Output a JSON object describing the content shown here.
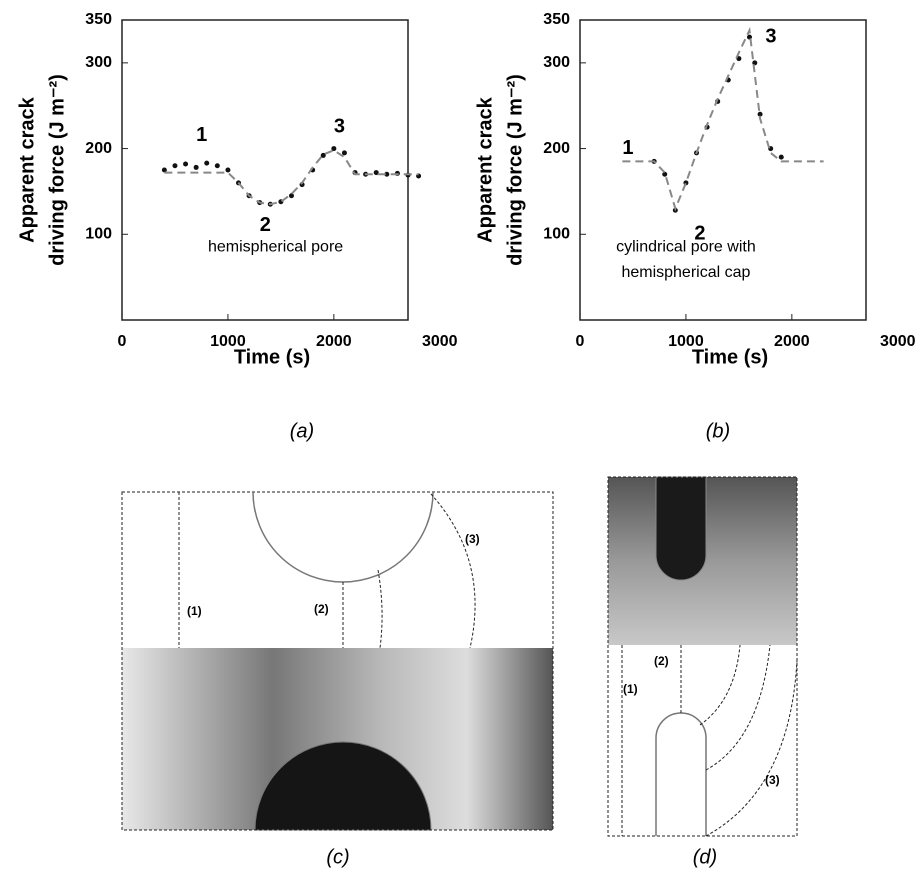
{
  "chart_data": [
    {
      "type": "scatter-fit",
      "panel": "(a)",
      "ylabel": [
        "Apparent crack",
        "driving force (J m⁻²)"
      ],
      "xlabel": "Time (s)",
      "xlim": [
        0,
        2700
      ],
      "xticks": [
        0,
        1000,
        2000,
        3000
      ],
      "ylim": [
        0,
        350
      ],
      "yticks": [
        100,
        200,
        300,
        350
      ],
      "annotations": [
        "1",
        "2",
        "3",
        "hemispherical pore"
      ],
      "series": [
        {
          "style": "points",
          "color": "#111111",
          "x": [
            400,
            500,
            600,
            700,
            800,
            900,
            1000,
            1100,
            1200,
            1300,
            1400,
            1500,
            1600,
            1700,
            1800,
            1900,
            2000,
            2100,
            2200,
            2300,
            2400,
            2500,
            2600,
            2700,
            2800
          ],
          "values": [
            175,
            180,
            182,
            178,
            183,
            180,
            175,
            160,
            145,
            137,
            135,
            138,
            145,
            158,
            175,
            192,
            200,
            195,
            172,
            170,
            172,
            170,
            171,
            169,
            168
          ]
        },
        {
          "style": "dashed",
          "color": "#888888",
          "x": [
            400,
            1000,
            1100,
            1200,
            1300,
            1400,
            1500,
            1600,
            1700,
            1800,
            1900,
            2000,
            2100,
            2200,
            2800
          ],
          "values": [
            172,
            172,
            160,
            145,
            137,
            135,
            138,
            147,
            160,
            178,
            193,
            198,
            190,
            170,
            170
          ]
        }
      ]
    },
    {
      "type": "scatter-fit",
      "panel": "(b)",
      "ylabel": [
        "Apparent crack",
        "driving force (J m⁻²)"
      ],
      "xlabel": "Time (s)",
      "xlim": [
        0,
        2700
      ],
      "xticks": [
        0,
        1000,
        2000,
        3000
      ],
      "ylim": [
        0,
        350
      ],
      "yticks": [
        100,
        200,
        300,
        350
      ],
      "annotations": [
        "1",
        "2",
        "3",
        "cylindrical pore with",
        "hemispherical cap"
      ],
      "series": [
        {
          "style": "points",
          "color": "#111111",
          "x": [
            700,
            800,
            900,
            1000,
            1100,
            1200,
            1300,
            1400,
            1500,
            1600,
            1650,
            1700,
            1800,
            1900
          ],
          "values": [
            185,
            170,
            128,
            160,
            195,
            225,
            255,
            280,
            305,
            330,
            300,
            240,
            200,
            190
          ]
        },
        {
          "style": "dashed",
          "color": "#888888",
          "x": [
            400,
            700,
            800,
            900,
            1000,
            1100,
            1200,
            1300,
            1400,
            1500,
            1600,
            1700,
            1800,
            1900,
            2300
          ],
          "values": [
            185,
            185,
            172,
            130,
            160,
            195,
            228,
            258,
            285,
            312,
            338,
            235,
            195,
            185,
            185
          ]
        }
      ]
    }
  ],
  "panels": {
    "c": {
      "label": "(c)",
      "contours": [
        "(1)",
        "(2)",
        "(3)"
      ]
    },
    "d": {
      "label": "(d)",
      "contours": [
        "(1)",
        "(2)",
        "(3)"
      ]
    }
  }
}
